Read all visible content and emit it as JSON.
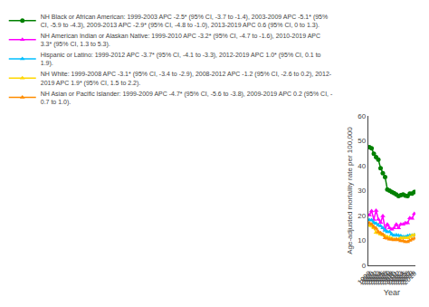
{
  "chart_data": {
    "type": "line",
    "x": [
      1999,
      2000,
      2001,
      2002,
      2003,
      2004,
      2005,
      2006,
      2007,
      2008,
      2009,
      2010,
      2011,
      2012,
      2013,
      2014,
      2015,
      2016,
      2017,
      2018,
      2019
    ],
    "series": [
      {
        "name": "NH Black or African American: 1999-2003 APC -2.5* (95% CI, -3.7 to -1.4), 2003-2009 APC -5.1* (95%\nCI, -5.9 to -4.3), 2009-2013 APC -2.9* (95% CI, -4.8 to -1.0), 2013-2019 APC 0.6 (95% CI, 0 to 1.3).",
        "color": "#008000",
        "marker": "circle",
        "values": [
          47.5,
          47.0,
          44.8,
          43.5,
          42.5,
          39.0,
          37.0,
          35.5,
          30.5,
          30.0,
          29.5,
          29.0,
          28.5,
          27.8,
          28.2,
          28.5,
          28.0,
          27.8,
          28.8,
          28.8,
          29.5
        ]
      },
      {
        "name": "NH American Indian or Alaskan Native: 1999-2010 APC -3.2* (95% CI, -4.7 to -1.6), 2010-2019 APC\n3.3* (95% CI, 1.3 to 5.3).",
        "color": "#ff00ff",
        "marker": "triangle-up",
        "values": [
          20.2,
          21.8,
          18.4,
          22.0,
          18.5,
          17.2,
          19.8,
          14.5,
          16.5,
          15.0,
          14.5,
          15.0,
          16.5,
          15.0,
          16.5,
          16.5,
          17.0,
          17.0,
          19.0,
          18.8,
          20.7
        ]
      },
      {
        "name": "Hispanic or Latino: 1999-2012 APC -3.7* (95% CI, -4.1 to -3.3), 2012-2019 APC 1.0* (95% CI, 0.1 to\n1.9).",
        "color": "#00bfff",
        "marker": "triangle-up",
        "values": [
          18.2,
          18.2,
          17.2,
          16.8,
          16.2,
          15.8,
          15.0,
          14.0,
          13.5,
          13.5,
          12.5,
          12.0,
          12.2,
          12.0,
          11.8,
          11.5,
          11.5,
          11.8,
          12.0,
          12.0,
          12.2
        ]
      },
      {
        "name": "NH White: 1999-2008 APC -3.1* (95% CI, -3.4 to -2.9), 2008-2012 APC -1.2 (95% CI, -2.6 to 0.2), 2012-\n2019 APC 1.9* (95% CI, 1.5 to 2.2).",
        "color": "#ffd700",
        "marker": "triangle-up",
        "values": [
          16.0,
          15.8,
          15.0,
          13.2,
          13.0,
          12.5,
          12.2,
          11.8,
          11.5,
          11.2,
          10.8,
          10.5,
          10.5,
          10.5,
          11.0,
          11.0,
          11.0,
          11.0,
          11.5,
          12.0,
          12.2
        ]
      },
      {
        "name": "NH Asian or Pacific Islander: 1999-2009 APC -4.7* (95% CI, -5.6 to -3.8), 2009-2019 APC 0.2 (95% CI, -\n0.7 to 1.0).",
        "color": "#ff8c00",
        "marker": "triangle-up",
        "values": [
          17.0,
          16.5,
          15.5,
          14.8,
          13.5,
          13.0,
          12.5,
          11.0,
          10.8,
          10.5,
          10.5,
          10.2,
          10.5,
          10.2,
          9.8,
          9.8,
          9.5,
          9.5,
          10.0,
          10.5,
          10.8
        ]
      }
    ],
    "xlabel": "Year",
    "ylabel": "Age-adjusted mortality rate per 100,000",
    "xlim": [
      1998.5,
      2019.5
    ],
    "xticks": [
      1999,
      2000,
      2001,
      2002,
      2003,
      2004,
      2005,
      2006,
      2007,
      2008,
      2009,
      2010,
      2011,
      2012,
      2013,
      2014,
      2015,
      2016,
      2017,
      2018,
      2019
    ],
    "ylim": [
      0,
      60
    ],
    "yticks": [
      0,
      10,
      20,
      30,
      40,
      50,
      60
    ],
    "grid": false,
    "legend": "top"
  }
}
